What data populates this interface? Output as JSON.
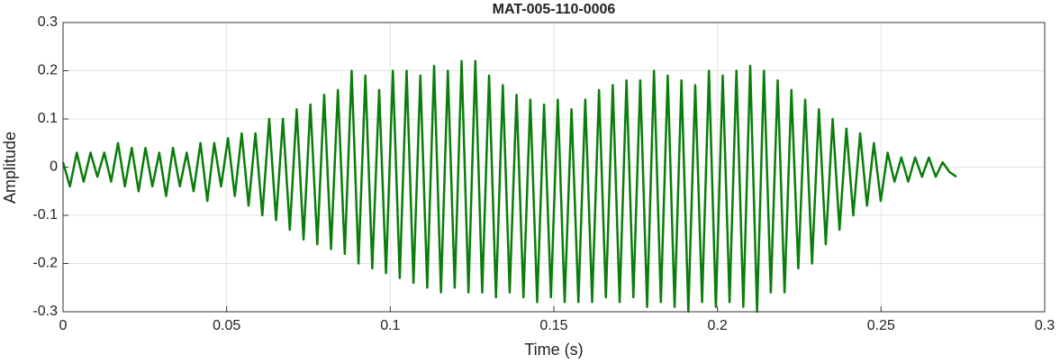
{
  "chart_data": {
    "type": "line",
    "title": "MAT-005-110-0006",
    "xlabel": "Time (s)",
    "ylabel": "Amplitude",
    "x": [
      0,
      0.0021,
      0.0042,
      0.0063,
      0.0084,
      0.0105,
      0.0126,
      0.0147,
      0.0168,
      0.0189,
      0.021,
      0.0231,
      0.0252,
      0.0273,
      0.0294,
      0.0315,
      0.0336,
      0.0357,
      0.0378,
      0.0399,
      0.042,
      0.0441,
      0.0462,
      0.0483,
      0.0504,
      0.0525,
      0.0546,
      0.0567,
      0.0588,
      0.0609,
      0.063,
      0.0651,
      0.0672,
      0.0693,
      0.0714,
      0.0735,
      0.0756,
      0.0777,
      0.0798,
      0.0819,
      0.084,
      0.0861,
      0.0882,
      0.0903,
      0.0924,
      0.0945,
      0.0966,
      0.0987,
      0.1008,
      0.1029,
      0.105,
      0.1071,
      0.1092,
      0.1113,
      0.1134,
      0.1155,
      0.1176,
      0.1197,
      0.1218,
      0.1239,
      0.126,
      0.1281,
      0.1302,
      0.1323,
      0.1344,
      0.1365,
      0.1386,
      0.1407,
      0.1428,
      0.1449,
      0.147,
      0.1491,
      0.1512,
      0.1533,
      0.1554,
      0.1575,
      0.1596,
      0.1617,
      0.1638,
      0.1659,
      0.168,
      0.1701,
      0.1722,
      0.1743,
      0.1764,
      0.1785,
      0.1806,
      0.1827,
      0.1848,
      0.1869,
      0.189,
      0.1911,
      0.1932,
      0.1953,
      0.1974,
      0.1995,
      0.2016,
      0.2037,
      0.2058,
      0.2079,
      0.21,
      0.2121,
      0.2142,
      0.2163,
      0.2184,
      0.2205,
      0.2226,
      0.2247,
      0.2268,
      0.2289,
      0.231,
      0.2331,
      0.2352,
      0.2373,
      0.2394,
      0.2415,
      0.2436,
      0.2457,
      0.2478,
      0.2499,
      0.252,
      0.2541,
      0.2562,
      0.2583,
      0.2604,
      0.2625,
      0.2646,
      0.2667,
      0.2688,
      0.2709,
      0.273
    ],
    "series": [
      {
        "color": "#0a7d0a",
        "values": [
          0.01,
          -0.04,
          0.03,
          -0.03,
          0.03,
          -0.02,
          0.03,
          -0.03,
          0.05,
          -0.04,
          0.04,
          -0.05,
          0.04,
          -0.04,
          0.03,
          -0.06,
          0.04,
          -0.04,
          0.03,
          -0.05,
          0.05,
          -0.07,
          0.05,
          -0.04,
          0.06,
          -0.06,
          0.07,
          -0.08,
          0.07,
          -0.1,
          0.1,
          -0.11,
          0.1,
          -0.13,
          0.12,
          -0.15,
          0.13,
          -0.16,
          0.15,
          -0.17,
          0.16,
          -0.18,
          0.2,
          -0.2,
          0.19,
          -0.21,
          0.16,
          -0.22,
          0.2,
          -0.23,
          0.2,
          -0.24,
          0.19,
          -0.25,
          0.21,
          -0.26,
          0.2,
          -0.25,
          0.22,
          -0.26,
          0.22,
          -0.26,
          0.19,
          -0.27,
          0.17,
          -0.26,
          0.15,
          -0.27,
          0.14,
          -0.28,
          0.13,
          -0.27,
          0.14,
          -0.28,
          0.12,
          -0.28,
          0.14,
          -0.28,
          0.16,
          -0.27,
          0.17,
          -0.28,
          0.18,
          -0.27,
          0.18,
          -0.29,
          0.2,
          -0.28,
          0.19,
          -0.29,
          0.18,
          -0.3,
          0.17,
          -0.28,
          0.2,
          -0.29,
          0.19,
          -0.28,
          0.2,
          -0.29,
          0.21,
          -0.3,
          0.2,
          -0.26,
          0.18,
          -0.26,
          0.16,
          -0.21,
          0.14,
          -0.2,
          0.12,
          -0.16,
          0.1,
          -0.13,
          0.08,
          -0.1,
          0.07,
          -0.08,
          0.05,
          -0.07,
          0.03,
          -0.03,
          0.02,
          -0.03,
          0.02,
          -0.02,
          0.02,
          -0.02,
          0.01,
          -0.01,
          -0.02
        ]
      }
    ],
    "xlim": [
      0,
      0.3
    ],
    "xticks": [
      0,
      0.05,
      0.1,
      0.15,
      0.2,
      0.25,
      0.3
    ],
    "ylim": [
      -0.3,
      0.3
    ],
    "yticks": [
      -0.3,
      -0.2,
      -0.1,
      0,
      0.1,
      0.2,
      0.3
    ],
    "grid": true
  }
}
